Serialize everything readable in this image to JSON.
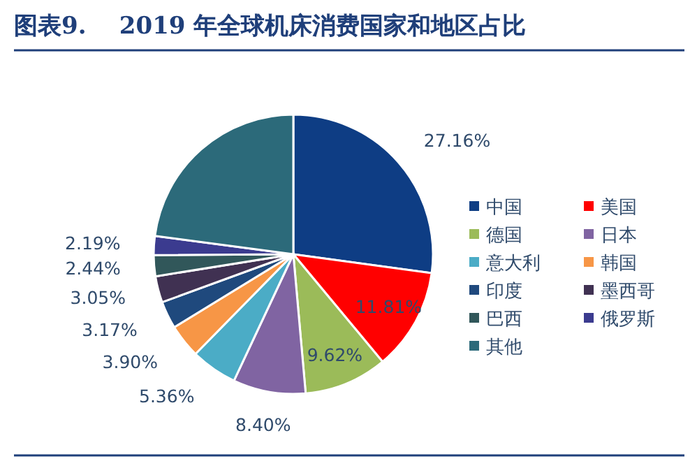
{
  "chart_data": {
    "type": "pie",
    "title": "图表9.    2019 年全球机床消费国家和地区占比",
    "categories": [
      "中国",
      "美国",
      "德国",
      "日本",
      "意大利",
      "韩国",
      "印度",
      "墨西哥",
      "巴西",
      "俄罗斯",
      "其他"
    ],
    "values": [
      27.16,
      11.81,
      9.62,
      8.4,
      5.36,
      3.9,
      3.17,
      3.05,
      2.44,
      2.19,
      22.9
    ],
    "colors": [
      "#0e3d84",
      "#ff0000",
      "#9bbb59",
      "#8064a2",
      "#4bacc6",
      "#f79646",
      "#1f497d",
      "#403152",
      "#31575a",
      "#3b3b8f",
      "#2c6a7a"
    ],
    "value_labels": [
      "27.16%",
      "11.81%",
      "9.62%",
      "8.40%",
      "5.36%",
      "3.90%",
      "3.17%",
      "3.05%",
      "2.44%",
      "2.19%",
      null
    ],
    "legend": "right"
  }
}
